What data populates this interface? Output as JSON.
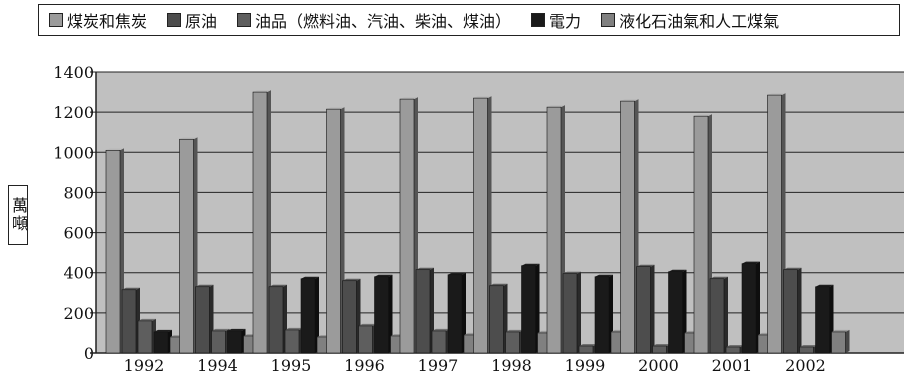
{
  "chart_data": {
    "type": "bar",
    "title": "",
    "xlabel": "",
    "ylabel": "萬噸",
    "ylim": [
      0,
      1400
    ],
    "yticks": [
      "0",
      "200",
      "400",
      "600",
      "800",
      "1000",
      "1200",
      "1400"
    ],
    "grid": true,
    "legend_position": "top",
    "categories": [
      "1992",
      "1994",
      "1995",
      "1996",
      "1997",
      "1998",
      "1999",
      "2000",
      "2001",
      "2002"
    ],
    "series": [
      {
        "name": "煤炭和焦炭",
        "color": "#9b9b9b",
        "values": [
          1010,
          1065,
          1300,
          1215,
          1265,
          1270,
          1225,
          1255,
          1180,
          1285
        ]
      },
      {
        "name": "原油",
        "color": "#4d4d4d",
        "values": [
          315,
          330,
          330,
          360,
          415,
          335,
          395,
          430,
          370,
          415
        ]
      },
      {
        "name": "油品（燃料油、汽油、柴油、煤油）",
        "color": "#5e5e5e",
        "values": [
          160,
          110,
          115,
          135,
          110,
          105,
          35,
          35,
          30,
          30
        ]
      },
      {
        "name": "電力",
        "color": "#1a1a1a",
        "values": [
          105,
          110,
          370,
          380,
          390,
          435,
          380,
          405,
          445,
          330
        ]
      },
      {
        "name": "液化石油氣和人工煤氣",
        "color": "#808080",
        "values": [
          80,
          85,
          80,
          85,
          90,
          100,
          105,
          100,
          90,
          105
        ]
      }
    ]
  }
}
